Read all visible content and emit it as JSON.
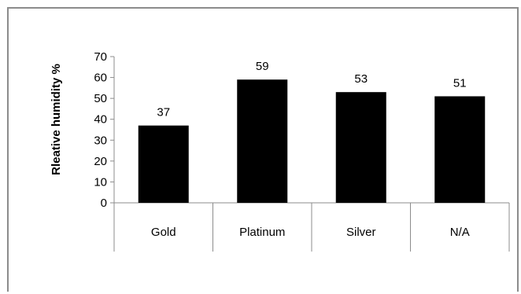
{
  "chart_data": {
    "type": "bar",
    "categories": [
      "Gold",
      "Platinum",
      "Silver",
      "N/A"
    ],
    "values": [
      37,
      59,
      53,
      51
    ],
    "data_labels": [
      "37",
      "59",
      "53",
      "51"
    ],
    "title": "",
    "xlabel": "",
    "ylabel": "Rleative humidity %",
    "ylim": [
      0,
      70
    ],
    "yticks": [
      0,
      10,
      20,
      30,
      40,
      50,
      60,
      70
    ],
    "ytick_labels": [
      "0",
      "10",
      "20",
      "30",
      "40",
      "50",
      "60",
      "70"
    ],
    "grid": false,
    "legend": "none",
    "bar_color": "#000000",
    "axis_color": "#8c8c8c"
  }
}
